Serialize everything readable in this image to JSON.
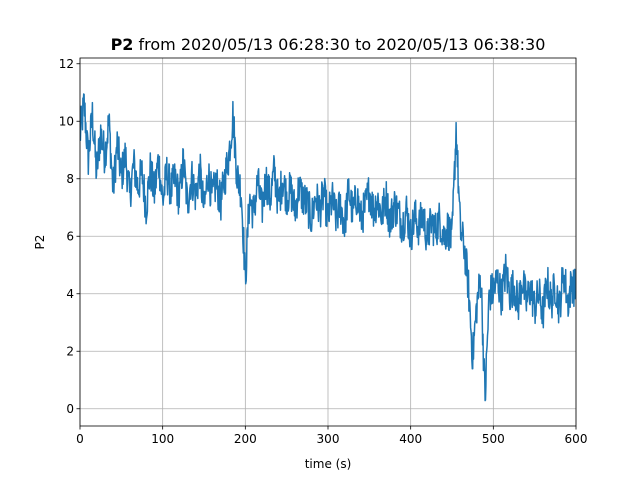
{
  "chart_data": {
    "type": "line",
    "title_bold": "P2",
    "title_rest": " from 2020/05/13 06:28:30 to 2020/05/13 06:38:30",
    "xlabel": "time (s)",
    "ylabel": "P2",
    "xlim": [
      0,
      600
    ],
    "ylim": [
      -0.6,
      12.2
    ],
    "xticks": [
      0,
      100,
      200,
      300,
      400,
      500,
      600
    ],
    "yticks": [
      0,
      2,
      4,
      6,
      8,
      10,
      12
    ],
    "grid": true,
    "line_color": "#1f77b4",
    "series": [
      {
        "x": [
          0,
          5,
          10,
          15,
          20,
          25,
          30,
          35,
          40,
          45,
          50,
          55,
          60,
          65,
          70,
          75,
          80,
          85,
          90,
          95,
          100,
          105,
          110,
          115,
          120,
          125,
          130,
          135,
          140,
          145,
          150,
          155,
          160,
          165,
          170,
          175,
          180,
          185,
          190,
          195,
          200,
          205,
          210,
          215,
          220,
          225,
          230,
          235,
          240,
          245,
          250,
          255,
          260,
          265,
          270,
          275,
          280,
          285,
          290,
          295,
          300,
          305,
          310,
          315,
          320,
          325,
          330,
          335,
          340,
          345,
          350,
          355,
          360,
          365,
          370,
          375,
          380,
          385,
          390,
          395,
          400,
          405,
          410,
          415,
          420,
          425,
          430,
          435,
          440,
          445,
          450,
          455,
          460,
          465,
          470,
          475,
          480,
          485,
          490,
          495,
          500,
          505,
          510,
          515,
          520,
          525,
          530,
          535,
          540,
          545,
          550,
          555,
          560,
          565,
          570,
          575,
          580,
          585,
          590,
          595,
          600
        ],
        "values": [
          9.5,
          10.6,
          8.7,
          10.2,
          8.2,
          9.6,
          8.8,
          10.0,
          7.6,
          9.2,
          8.1,
          8.8,
          7.4,
          8.5,
          7.7,
          8.2,
          7.0,
          8.3,
          7.5,
          8.7,
          7.2,
          8.2,
          7.6,
          8.0,
          7.3,
          8.6,
          7.1,
          8.1,
          7.4,
          8.3,
          6.9,
          8.2,
          7.3,
          7.9,
          7.1,
          8.0,
          8.8,
          10.2,
          8.1,
          7.6,
          4.5,
          7.3,
          6.8,
          7.9,
          6.9,
          8.0,
          7.3,
          8.3,
          7.1,
          8.0,
          7.4,
          7.6,
          6.9,
          7.7,
          7.3,
          7.1,
          6.6,
          7.4,
          6.9,
          7.5,
          6.6,
          7.3,
          6.6,
          7.1,
          6.4,
          7.6,
          6.8,
          7.4,
          6.6,
          7.0,
          7.6,
          6.9,
          7.3,
          6.7,
          7.4,
          6.5,
          7.1,
          6.8,
          6.4,
          6.9,
          6.0,
          6.7,
          6.3,
          6.8,
          5.9,
          6.5,
          6.2,
          6.6,
          6.0,
          6.3,
          5.8,
          9.8,
          6.2,
          5.6,
          4.2,
          1.8,
          3.6,
          4.6,
          0.3,
          4.0,
          4.1,
          4.5,
          3.9,
          4.8,
          4.0,
          4.3,
          3.6,
          4.5,
          3.7,
          4.2,
          3.5,
          4.0,
          3.3,
          4.4,
          3.7,
          4.3,
          3.5,
          4.8,
          3.7,
          4.4,
          4.1
        ]
      }
    ],
    "noise_amplitude": 0.7
  }
}
